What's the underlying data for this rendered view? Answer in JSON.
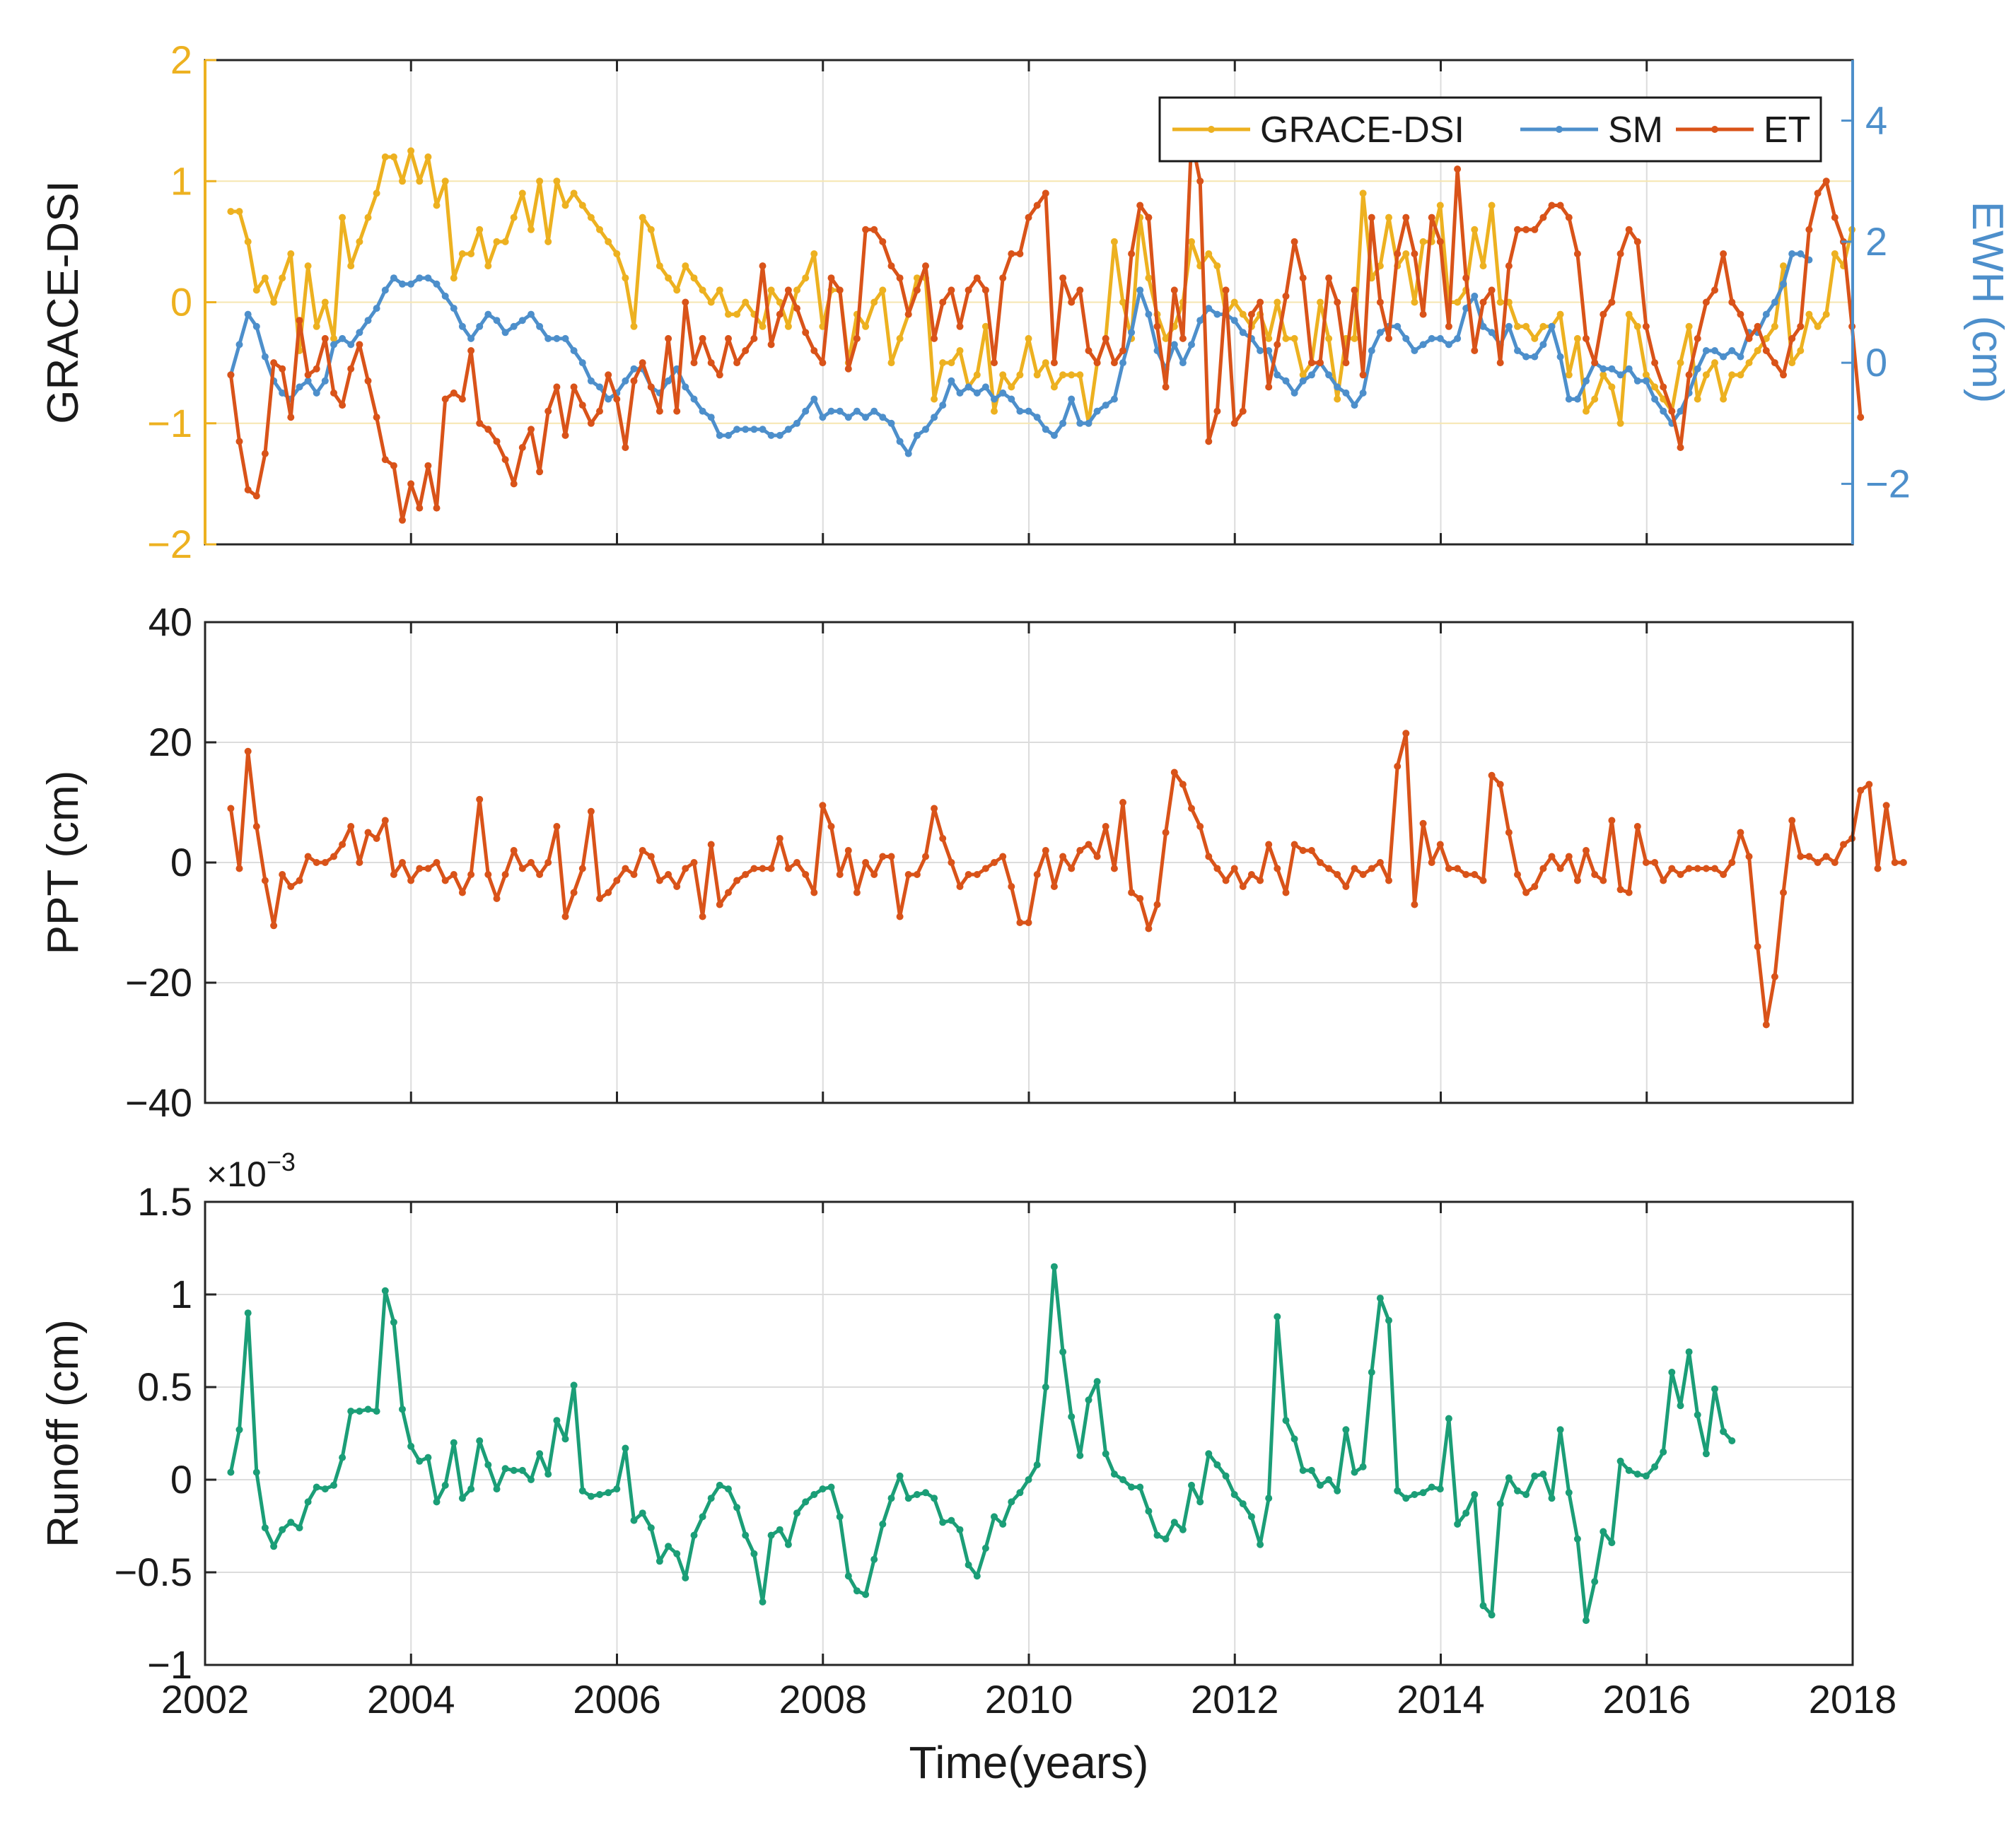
{
  "chart_data": [
    {
      "type": "line",
      "panel": "top",
      "xlabel": "",
      "ylabel": "GRACE-DSI",
      "y2label": "EWH (cm)",
      "xlim": [
        2002,
        2018
      ],
      "ylim": [
        -2,
        2
      ],
      "y2lim": [
        -3,
        5
      ],
      "xticks": [
        "2002",
        "2004",
        "2006",
        "2008",
        "2010",
        "2012",
        "2014",
        "2016",
        "2018"
      ],
      "yticks": [
        "−2",
        "−1",
        "0",
        "1",
        "2"
      ],
      "y2ticks": [
        "−2",
        "0",
        "2",
        "4"
      ],
      "legend": {
        "position": "top-right",
        "entries": [
          "GRACE-DSI",
          "SM",
          "ET"
        ]
      },
      "colors": {
        "grace": "#EDB120",
        "sm": "#4D8FCB",
        "et": "#D95319",
        "axis2": "#4D8FCB",
        "axis1": "#EDB120"
      },
      "x_start": 2002.25,
      "x_step": 0.0833,
      "series": [
        {
          "name": "GRACE-DSI",
          "axis": "left",
          "color": "#EDB120",
          "values": [
            0.75,
            0.75,
            0.5,
            0.1,
            0.2,
            0.0,
            0.2,
            0.4,
            -0.4,
            0.3,
            -0.2,
            0.0,
            -0.3,
            0.7,
            0.3,
            0.5,
            0.7,
            0.9,
            1.2,
            1.2,
            1.0,
            1.25,
            1.0,
            1.2,
            0.8,
            1.0,
            0.2,
            0.4,
            0.4,
            0.6,
            0.3,
            0.5,
            0.5,
            0.7,
            0.9,
            0.6,
            1.0,
            0.5,
            1.0,
            0.8,
            0.9,
            0.8,
            0.7,
            0.6,
            0.5,
            0.4,
            0.2,
            -0.2,
            0.7,
            0.6,
            0.3,
            0.2,
            0.1,
            0.3,
            0.2,
            0.1,
            0.0,
            0.1,
            -0.1,
            -0.1,
            0.0,
            -0.1,
            -0.2,
            0.1,
            0.0,
            -0.2,
            0.1,
            0.2,
            0.4,
            -0.2,
            0.1,
            0.1,
            -0.5,
            -0.1,
            -0.2,
            0.0,
            0.1,
            -0.5,
            -0.3,
            -0.1,
            0.2,
            0.2,
            -0.8,
            -0.5,
            -0.5,
            -0.4,
            -0.7,
            -0.6,
            -0.2,
            -0.9,
            -0.6,
            -0.7,
            -0.6,
            -0.3,
            -0.6,
            -0.5,
            -0.7,
            -0.6,
            -0.6,
            -0.6,
            -1.0,
            -0.5,
            -0.3,
            0.5,
            0.0,
            -0.3,
            0.7,
            0.2,
            -0.1,
            -0.3,
            -0.2,
            0.0,
            0.5,
            0.3,
            0.4,
            0.3,
            -0.1,
            0.0,
            -0.1,
            -0.2,
            -0.1,
            -0.3,
            0.0,
            -0.3,
            -0.3,
            -0.6,
            -0.5,
            0.0,
            -0.3,
            -0.8,
            -0.3,
            -0.3,
            0.9,
            0.2,
            0.3,
            0.7,
            0.3,
            0.4,
            0.0,
            0.5,
            0.5,
            0.8,
            0.0,
            0.0,
            0.1,
            0.6,
            0.3,
            0.8,
            0.0,
            0.0,
            -0.2,
            -0.2,
            -0.3,
            -0.2,
            -0.2,
            -0.1,
            -0.6,
            -0.3,
            -0.9,
            -0.8,
            -0.6,
            -0.7,
            -1.0,
            -0.1,
            -0.2,
            -0.6,
            -0.7,
            -0.8,
            -0.9,
            -0.5,
            -0.2,
            -0.8,
            -0.6,
            -0.5,
            -0.8,
            -0.6,
            -0.6,
            -0.5,
            -0.4,
            -0.3,
            -0.2,
            0.3,
            -0.5,
            -0.4,
            -0.1,
            -0.2,
            -0.1,
            0.4,
            0.3,
            0.6
          ]
        },
        {
          "name": "SM",
          "axis": "right",
          "color": "#4D8FCB",
          "values": [
            -0.2,
            0.3,
            0.8,
            0.6,
            0.1,
            -0.3,
            -0.5,
            -0.6,
            -0.4,
            -0.3,
            -0.5,
            -0.3,
            0.3,
            0.4,
            0.3,
            0.5,
            0.7,
            0.9,
            1.2,
            1.4,
            1.3,
            1.3,
            1.4,
            1.4,
            1.3,
            1.1,
            0.9,
            0.6,
            0.4,
            0.6,
            0.8,
            0.7,
            0.5,
            0.6,
            0.7,
            0.8,
            0.6,
            0.4,
            0.4,
            0.4,
            0.2,
            0.0,
            -0.3,
            -0.4,
            -0.6,
            -0.5,
            -0.3,
            -0.1,
            -0.1,
            -0.4,
            -0.5,
            -0.3,
            -0.1,
            -0.4,
            -0.6,
            -0.8,
            -0.9,
            -1.2,
            -1.2,
            -1.1,
            -1.1,
            -1.1,
            -1.1,
            -1.2,
            -1.2,
            -1.1,
            -1.0,
            -0.8,
            -0.6,
            -0.9,
            -0.8,
            -0.8,
            -0.9,
            -0.8,
            -0.9,
            -0.8,
            -0.9,
            -1.0,
            -1.3,
            -1.5,
            -1.2,
            -1.1,
            -0.9,
            -0.7,
            -0.3,
            -0.5,
            -0.4,
            -0.5,
            -0.4,
            -0.6,
            -0.5,
            -0.6,
            -0.8,
            -0.8,
            -0.9,
            -1.1,
            -1.2,
            -1.0,
            -0.6,
            -1.0,
            -1.0,
            -0.8,
            -0.7,
            -0.6,
            0.0,
            0.5,
            1.2,
            0.8,
            0.2,
            -0.1,
            0.3,
            0.0,
            0.3,
            0.7,
            0.9,
            0.8,
            0.8,
            0.7,
            0.5,
            0.4,
            0.2,
            0.2,
            -0.2,
            -0.3,
            -0.5,
            -0.3,
            -0.2,
            0.0,
            -0.2,
            -0.4,
            -0.5,
            -0.7,
            -0.5,
            0.2,
            0.5,
            0.6,
            0.6,
            0.4,
            0.2,
            0.3,
            0.4,
            0.4,
            0.3,
            0.4,
            0.9,
            1.1,
            0.6,
            0.5,
            0.3,
            0.6,
            0.2,
            0.1,
            0.1,
            0.3,
            0.6,
            0.1,
            -0.6,
            -0.6,
            -0.3,
            -0.0,
            -0.1,
            -0.1,
            -0.2,
            -0.1,
            -0.3,
            -0.3,
            -0.6,
            -0.8,
            -1.0,
            -0.8,
            -0.5,
            -0.1,
            0.2,
            0.2,
            0.1,
            0.2,
            0.1,
            0.5,
            0.5,
            0.8,
            1.0,
            1.3,
            1.8,
            1.8,
            1.7
          ]
        },
        {
          "name": "ET",
          "axis": "left",
          "color": "#D95319",
          "values": [
            -0.6,
            -1.15,
            -1.55,
            -1.6,
            -1.25,
            -0.5,
            -0.55,
            -0.95,
            -0.15,
            -0.6,
            -0.55,
            -0.3,
            -0.75,
            -0.85,
            -0.55,
            -0.35,
            -0.65,
            -0.95,
            -1.3,
            -1.35,
            -1.8,
            -1.5,
            -1.7,
            -1.35,
            -1.7,
            -0.8,
            -0.75,
            -0.8,
            -0.4,
            -1.0,
            -1.05,
            -1.15,
            -1.3,
            -1.5,
            -1.2,
            -1.05,
            -1.4,
            -0.9,
            -0.7,
            -1.1,
            -0.7,
            -0.85,
            -1.0,
            -0.9,
            -0.6,
            -0.8,
            -1.2,
            -0.65,
            -0.5,
            -0.7,
            -0.9,
            -0.3,
            -0.9,
            0.0,
            -0.5,
            -0.3,
            -0.5,
            -0.6,
            -0.3,
            -0.5,
            -0.4,
            -0.3,
            0.3,
            -0.35,
            -0.1,
            0.1,
            -0.05,
            -0.25,
            -0.4,
            -0.5,
            0.2,
            0.1,
            -0.55,
            -0.3,
            0.6,
            0.6,
            0.5,
            0.3,
            0.2,
            -0.1,
            0.1,
            0.3,
            -0.3,
            0.0,
            0.1,
            -0.2,
            0.1,
            0.2,
            0.1,
            -0.5,
            0.2,
            0.4,
            0.4,
            0.7,
            0.8,
            0.9,
            -0.5,
            0.2,
            0.0,
            0.1,
            -0.4,
            -0.5,
            -0.3,
            -0.5,
            -0.4,
            0.4,
            0.8,
            0.7,
            -0.2,
            -0.7,
            0.1,
            -0.3,
            1.35,
            1.0,
            -1.15,
            -0.9,
            0.1,
            -1.0,
            -0.9,
            -0.1,
            0.0,
            -0.7,
            -0.35,
            0.05,
            0.5,
            0.2,
            -0.5,
            -0.5,
            0.2,
            0.0,
            -0.5,
            0.1,
            -0.6,
            0.7,
            0.0,
            -0.3,
            0.4,
            0.7,
            0.4,
            -0.1,
            0.7,
            0.5,
            -0.2,
            1.1,
            0.2,
            -0.4,
            0.0,
            0.1,
            -0.5,
            0.3,
            0.6,
            0.6,
            0.6,
            0.7,
            0.8,
            0.8,
            0.7,
            0.4,
            -0.3,
            -0.5,
            -0.1,
            0.0,
            0.4,
            0.6,
            0.5,
            -0.2,
            -0.5,
            -0.7,
            -0.9,
            -1.2,
            -0.6,
            -0.3,
            0.0,
            0.1,
            0.4,
            0.0,
            -0.1,
            -0.3,
            -0.2,
            -0.4,
            -0.5,
            -0.6,
            -0.3,
            -0.2,
            0.6,
            0.9,
            1.0,
            0.7,
            0.5,
            -0.2,
            -0.95
          ]
        }
      ]
    },
    {
      "type": "line",
      "panel": "middle",
      "xlabel": "",
      "ylabel": "PPT (cm)",
      "xlim": [
        2002,
        2018
      ],
      "ylim": [
        -40,
        40
      ],
      "xticks": [
        "2002",
        "2004",
        "2006",
        "2008",
        "2010",
        "2012",
        "2014",
        "2016",
        "2018"
      ],
      "yticks": [
        "−40",
        "−20",
        "0",
        "20",
        "40"
      ],
      "x_start": 2002.25,
      "x_step": 0.0833,
      "series": [
        {
          "name": "PPT",
          "color": "#D95319",
          "values": [
            9,
            -1,
            18.5,
            6,
            -3,
            -10.5,
            -2,
            -4,
            -3,
            1,
            0,
            0,
            1,
            3,
            6,
            0,
            5,
            4,
            7,
            -2,
            0,
            -3,
            -1,
            -1,
            0,
            -3,
            -2,
            -5,
            -2,
            10.5,
            -2,
            -6,
            -2,
            2,
            -1,
            0,
            -2,
            0,
            6,
            -9,
            -5,
            -1,
            8.5,
            -6,
            -5,
            -3,
            -1,
            -2,
            2,
            1,
            -3,
            -2,
            -4,
            -1,
            0,
            -9,
            3,
            -7,
            -5,
            -3,
            -2,
            -1,
            -1,
            -1,
            4,
            -1,
            0,
            -2,
            -5,
            9.5,
            6,
            -2,
            2,
            -5,
            0,
            -2,
            1,
            1,
            -9,
            -2,
            -2,
            1,
            9,
            4,
            0,
            -4,
            -2,
            -2,
            -1,
            0,
            1,
            -4,
            -10,
            -10,
            -2,
            2,
            -4,
            1,
            -1,
            2,
            3,
            1,
            6,
            -1,
            10,
            -5,
            -6,
            -11,
            -7,
            5,
            15,
            13,
            9,
            6,
            1,
            -1,
            -3,
            -1,
            -4,
            -2,
            -3,
            3,
            -1,
            -5,
            3,
            2,
            2,
            0,
            -1,
            -2,
            -4,
            -1,
            -2,
            -1,
            0,
            -3,
            16,
            21.5,
            -7,
            6.5,
            0,
            3,
            -1,
            -1,
            -2,
            -2,
            -3,
            14.5,
            13,
            5,
            -2,
            -5,
            -4,
            -1,
            1,
            -1,
            1,
            -3,
            2,
            -2,
            -3,
            7,
            -4.5,
            -5,
            6,
            0,
            0,
            -3,
            -1,
            -2,
            -1,
            -1,
            -1,
            -1,
            -2,
            0,
            5,
            1,
            -14,
            -27,
            -19,
            -5,
            7,
            1,
            1,
            0,
            1,
            0,
            3,
            4,
            12,
            13,
            -1,
            9.5,
            0,
            0
          ]
        }
      ]
    },
    {
      "type": "line",
      "panel": "bottom",
      "xlabel": "Time(years)",
      "ylabel": "Runoff (cm)",
      "exponent_label": "×10",
      "exponent_power": "−3",
      "xlim": [
        2002,
        2018
      ],
      "ylim": [
        -1,
        1.5
      ],
      "xticks": [
        "2002",
        "2004",
        "2006",
        "2008",
        "2010",
        "2012",
        "2014",
        "2016",
        "2018"
      ],
      "yticks": [
        "−1",
        "−0.5",
        "0",
        "0.5",
        "1",
        "1.5"
      ],
      "x_start": 2002.25,
      "x_step": 0.0833,
      "series": [
        {
          "name": "Runoff",
          "color": "#1B9E77",
          "values": [
            0.04,
            0.27,
            0.9,
            0.04,
            -0.26,
            -0.36,
            -0.27,
            -0.23,
            -0.26,
            -0.12,
            -0.04,
            -0.05,
            -0.03,
            0.12,
            0.37,
            0.37,
            0.38,
            0.37,
            1.02,
            0.85,
            0.38,
            0.18,
            0.1,
            0.12,
            -0.12,
            -0.03,
            0.2,
            -0.1,
            -0.05,
            0.21,
            0.08,
            -0.05,
            0.06,
            0.05,
            0.05,
            0.0,
            0.14,
            0.03,
            0.32,
            0.22,
            0.51,
            -0.06,
            -0.09,
            -0.08,
            -0.07,
            -0.05,
            0.17,
            -0.22,
            -0.18,
            -0.26,
            -0.44,
            -0.36,
            -0.4,
            -0.53,
            -0.3,
            -0.2,
            -0.1,
            -0.03,
            -0.05,
            -0.15,
            -0.3,
            -0.4,
            -0.66,
            -0.3,
            -0.27,
            -0.35,
            -0.18,
            -0.12,
            -0.08,
            -0.05,
            -0.04,
            -0.2,
            -0.52,
            -0.6,
            -0.62,
            -0.43,
            -0.24,
            -0.1,
            0.02,
            -0.1,
            -0.08,
            -0.07,
            -0.1,
            -0.23,
            -0.22,
            -0.27,
            -0.46,
            -0.52,
            -0.37,
            -0.2,
            -0.24,
            -0.12,
            -0.07,
            0.0,
            0.08,
            0.5,
            1.15,
            0.69,
            0.34,
            0.13,
            0.43,
            0.53,
            0.14,
            0.03,
            0.0,
            -0.04,
            -0.04,
            -0.17,
            -0.3,
            -0.32,
            -0.23,
            -0.27,
            -0.03,
            -0.12,
            0.14,
            0.08,
            0.02,
            -0.08,
            -0.13,
            -0.2,
            -0.35,
            -0.1,
            0.88,
            0.32,
            0.22,
            0.05,
            0.05,
            -0.03,
            0.0,
            -0.06,
            0.27,
            0.04,
            0.07,
            0.58,
            0.98,
            0.86,
            -0.06,
            -0.1,
            -0.08,
            -0.07,
            -0.04,
            -0.05,
            0.33,
            -0.24,
            -0.18,
            -0.08,
            -0.68,
            -0.73,
            -0.13,
            0.01,
            -0.06,
            -0.08,
            0.02,
            0.03,
            -0.1,
            0.27,
            -0.07,
            -0.32,
            -0.76,
            -0.55,
            -0.28,
            -0.34,
            0.1,
            0.05,
            0.03,
            0.02,
            0.07,
            0.15,
            0.58,
            0.4,
            0.69,
            0.35,
            0.14,
            0.49,
            0.26,
            0.21
          ]
        }
      ]
    }
  ]
}
